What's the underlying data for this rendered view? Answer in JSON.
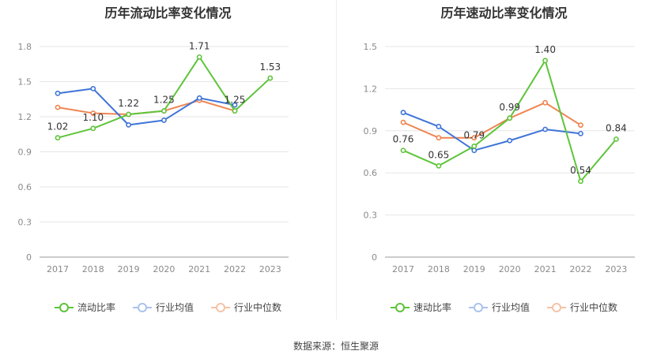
{
  "source_text": "数据来源：恒生聚源",
  "chart_data": [
    {
      "type": "line",
      "title": "历年流动比率变化情况",
      "categories": [
        "2017",
        "2018",
        "2019",
        "2020",
        "2021",
        "2022",
        "2023"
      ],
      "ylim": [
        0,
        1.8
      ],
      "yticks": [
        "0",
        "0.3",
        "0.6",
        "0.9",
        "1.2",
        "1.5",
        "1.8"
      ],
      "series": [
        {
          "name": "流动比率",
          "color": "#5ec43a",
          "values": [
            1.02,
            1.1,
            1.22,
            1.25,
            1.71,
            1.25,
            1.53
          ],
          "labels": [
            "1.02",
            "1.10",
            "1.22",
            "1.25",
            "1.71",
            "1.25",
            "1.53"
          ]
        },
        {
          "name": "行业均值",
          "color": "#3f74d8",
          "values": [
            1.4,
            1.44,
            1.13,
            1.17,
            1.36,
            1.3,
            null
          ]
        },
        {
          "name": "行业中位数",
          "color": "#ef8552",
          "values": [
            1.28,
            1.23,
            1.22,
            1.25,
            1.34,
            1.25,
            null
          ]
        }
      ]
    },
    {
      "type": "line",
      "title": "历年速动比率变化情况",
      "categories": [
        "2017",
        "2018",
        "2019",
        "2020",
        "2021",
        "2022",
        "2023"
      ],
      "ylim": [
        0,
        1.5
      ],
      "yticks": [
        "0",
        "0.3",
        "0.6",
        "0.9",
        "1.2",
        "1.5"
      ],
      "series": [
        {
          "name": "速动比率",
          "color": "#5ec43a",
          "values": [
            0.76,
            0.65,
            0.79,
            0.99,
            1.4,
            0.54,
            0.84
          ],
          "labels": [
            "0.76",
            "0.65",
            "0.79",
            "0.99",
            "1.40",
            "0.54",
            "0.84"
          ]
        },
        {
          "name": "行业均值",
          "color": "#3f74d8",
          "values": [
            1.03,
            0.93,
            0.76,
            0.83,
            0.91,
            0.88,
            null
          ]
        },
        {
          "name": "行业中位数",
          "color": "#ef8552",
          "values": [
            0.96,
            0.85,
            0.85,
            0.99,
            1.1,
            0.94,
            null
          ]
        }
      ]
    }
  ]
}
